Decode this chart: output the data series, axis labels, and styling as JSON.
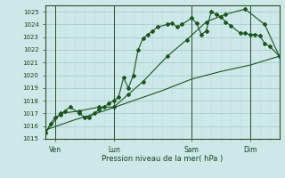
{
  "xlabel": "Pression niveau de la mer( hPa )",
  "ylim": [
    1015,
    1025.5
  ],
  "xlim": [
    0,
    96
  ],
  "bg_color": "#cce8e8",
  "grid_color_major": "#aacccc",
  "grid_color_minor": "#c0dada",
  "line_color": "#1a5520",
  "xtick_labels": [
    "Ven",
    "Lun",
    "Sam",
    "Dim"
  ],
  "xtick_positions": [
    4,
    28,
    60,
    84
  ],
  "vline_positions": [
    4,
    28,
    60,
    84
  ],
  "ytick_values": [
    1015,
    1016,
    1017,
    1018,
    1019,
    1020,
    1021,
    1022,
    1023,
    1024,
    1025
  ],
  "line1_x": [
    0,
    2,
    4,
    6,
    8,
    10,
    14,
    16,
    18,
    20,
    22,
    24,
    26,
    28,
    30,
    32,
    34,
    36,
    38,
    40,
    42,
    44,
    46,
    50,
    52,
    54,
    56,
    60,
    62,
    64,
    66,
    68,
    70,
    72,
    74,
    76,
    80,
    82,
    84,
    86,
    88,
    90,
    92,
    96
  ],
  "line1_y": [
    1015.5,
    1016.2,
    1016.7,
    1016.9,
    1017.2,
    1017.5,
    1017.0,
    1016.7,
    1016.7,
    1017.0,
    1017.3,
    1017.5,
    1017.8,
    1018.0,
    1018.3,
    1019.8,
    1019.0,
    1020.0,
    1022.0,
    1022.9,
    1023.2,
    1023.5,
    1023.8,
    1024.0,
    1024.1,
    1023.8,
    1024.0,
    1024.5,
    1024.1,
    1023.2,
    1023.5,
    1025.0,
    1024.8,
    1024.6,
    1024.2,
    1023.9,
    1023.3,
    1023.3,
    1023.2,
    1023.2,
    1023.1,
    1022.5,
    1022.3,
    1021.5
  ],
  "line2_x": [
    0,
    6,
    14,
    22,
    28,
    34,
    40,
    50,
    58,
    66,
    74,
    82,
    90,
    96
  ],
  "line2_y": [
    1015.5,
    1017.0,
    1017.2,
    1017.5,
    1017.5,
    1018.5,
    1019.5,
    1021.5,
    1022.8,
    1024.2,
    1024.8,
    1025.2,
    1024.0,
    1021.5
  ],
  "line3_x": [
    0,
    12,
    24,
    36,
    48,
    60,
    72,
    84,
    96
  ],
  "line3_y": [
    1015.7,
    1016.5,
    1017.2,
    1018.0,
    1018.8,
    1019.7,
    1020.3,
    1020.8,
    1021.5
  ]
}
